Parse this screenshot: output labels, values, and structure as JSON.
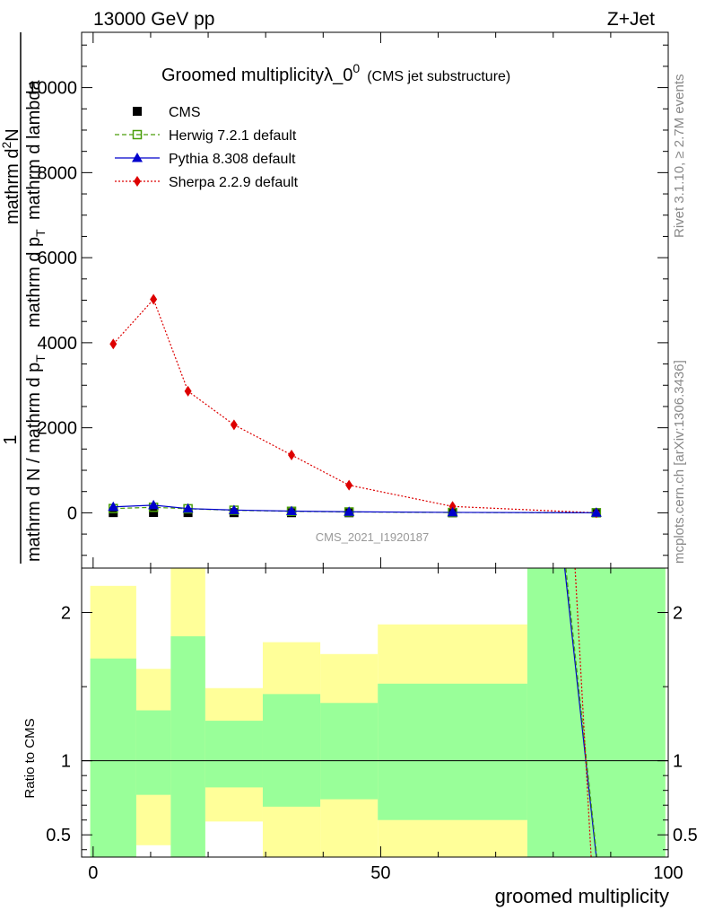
{
  "header": {
    "left": "13000 GeV pp",
    "right": "Z+Jet"
  },
  "plot_title": {
    "main": "Groomed multiplicityλ_0",
    "sup": "0",
    "sub": "(CMS jet substructure)"
  },
  "side_labels": {
    "rivet": "Rivet 3.1.10, ≥ 2.7M events",
    "mcplots": "mcplots.cern.ch [arXiv:1306.3436]"
  },
  "watermark": "CMS_2021_I1920187",
  "ylabel_upper": {
    "one": "1",
    "den": "mathrm d N / mathrm d p",
    "den_sub": "T",
    "num_a": "mathrm d",
    "num_sup": "2",
    "num_b": "N",
    "num_mid": "mathrm d p",
    "num_mid_sub": "T",
    "num_end": "mathrm d lambda"
  },
  "ylabel_lower": "Ratio to CMS",
  "xlabel": "groomed multiplicity",
  "legend": [
    {
      "label": "CMS",
      "marker": "square",
      "color": "#000000"
    },
    {
      "label": "Herwig 7.2.1 default",
      "marker": "open-square",
      "color": "#4a9e0a"
    },
    {
      "label": "Pythia 8.308 default",
      "marker": "triangle",
      "color": "#0000cc"
    },
    {
      "label": "Sherpa 2.2.9 default",
      "marker": "diamond",
      "color": "#dd0000"
    }
  ],
  "chart_data": {
    "type": "line",
    "x_range": [
      -2,
      100
    ],
    "upper": {
      "ylim": [
        -1300,
        11300
      ],
      "yticks": [
        0,
        2000,
        4000,
        6000,
        8000,
        10000
      ],
      "ytick_labels": [
        "0",
        "2000",
        "4000",
        "6000",
        "8000",
        "10000"
      ],
      "series": [
        {
          "name": "CMS",
          "x": [
            3.5,
            10.5,
            16.5,
            24.5,
            34.5,
            44.5,
            62.5,
            87.5
          ],
          "y": [
            5,
            8,
            6,
            4,
            3,
            2,
            1,
            0
          ]
        },
        {
          "name": "Herwig 7.2.1 default",
          "x": [
            3.5,
            10.5,
            16.5,
            24.5,
            34.5,
            44.5,
            62.5,
            87.5
          ],
          "y": [
            100,
            130,
            95,
            60,
            35,
            20,
            8,
            1
          ]
        },
        {
          "name": "Pythia 8.308 default",
          "x": [
            3.5,
            10.5,
            16.5,
            24.5,
            34.5,
            44.5,
            62.5,
            87.5
          ],
          "y": [
            140,
            180,
            100,
            65,
            40,
            25,
            10,
            2
          ]
        },
        {
          "name": "Sherpa 2.2.9 default",
          "x": [
            3.5,
            10.5,
            16.5,
            24.5,
            34.5,
            44.5,
            62.5,
            87.5
          ],
          "y": [
            3970,
            5020,
            2860,
            2070,
            1360,
            650,
            150,
            0
          ]
        }
      ]
    },
    "lower": {
      "ylim": [
        0.35,
        2.3
      ],
      "yticks": [
        0.5,
        1,
        2
      ],
      "ytick_labels": [
        "0.5",
        "1",
        "2"
      ],
      "reference": 1,
      "bands_yellow": [
        {
          "x0": -0.5,
          "x1": 7.5,
          "y0": 0.35,
          "y1": 2.18
        },
        {
          "x0": 7.5,
          "x1": 13.5,
          "y0": 0.43,
          "y1": 1.62
        },
        {
          "x0": 13.5,
          "x1": 19.5,
          "y0": 0.35,
          "y1": 2.3
        },
        {
          "x0": 19.5,
          "x1": 29.5,
          "y0": 0.59,
          "y1": 1.49
        },
        {
          "x0": 29.5,
          "x1": 39.5,
          "y0": 0.35,
          "y1": 1.8
        },
        {
          "x0": 39.5,
          "x1": 49.5,
          "y0": 0.35,
          "y1": 1.72
        },
        {
          "x0": 49.5,
          "x1": 75.5,
          "y0": 0.35,
          "y1": 1.92
        },
        {
          "x0": 75.5,
          "x1": 99.5,
          "y0": 0.35,
          "y1": 2.3
        }
      ],
      "bands_green": [
        {
          "x0": -0.5,
          "x1": 7.5,
          "y0": 0.35,
          "y1": 1.69
        },
        {
          "x0": 7.5,
          "x1": 13.5,
          "y0": 0.77,
          "y1": 1.34
        },
        {
          "x0": 13.5,
          "x1": 19.5,
          "y0": 0.35,
          "y1": 1.84
        },
        {
          "x0": 19.5,
          "x1": 29.5,
          "y0": 0.82,
          "y1": 1.27
        },
        {
          "x0": 29.5,
          "x1": 39.5,
          "y0": 0.69,
          "y1": 1.45
        },
        {
          "x0": 39.5,
          "x1": 49.5,
          "y0": 0.74,
          "y1": 1.39
        },
        {
          "x0": 49.5,
          "x1": 75.5,
          "y0": 0.6,
          "y1": 1.52
        },
        {
          "x0": 75.5,
          "x1": 99.5,
          "y0": 0.35,
          "y1": 2.3
        }
      ],
      "ratio_lines": [
        {
          "name": "Pythia 8.308 default",
          "x": [
            82,
            87.5
          ],
          "y": [
            2.3,
            0.35
          ]
        },
        {
          "name": "Herwig 7.2.1 default",
          "x": [
            82.2,
            87.6
          ],
          "y": [
            2.3,
            0.35
          ]
        },
        {
          "name": "Sherpa 2.2.9 default",
          "x": [
            83.8,
            86.6
          ],
          "y": [
            2.3,
            0.35
          ]
        }
      ]
    },
    "xticks": [
      0,
      50,
      100
    ],
    "xtick_labels": [
      "0",
      "50",
      "100"
    ]
  }
}
